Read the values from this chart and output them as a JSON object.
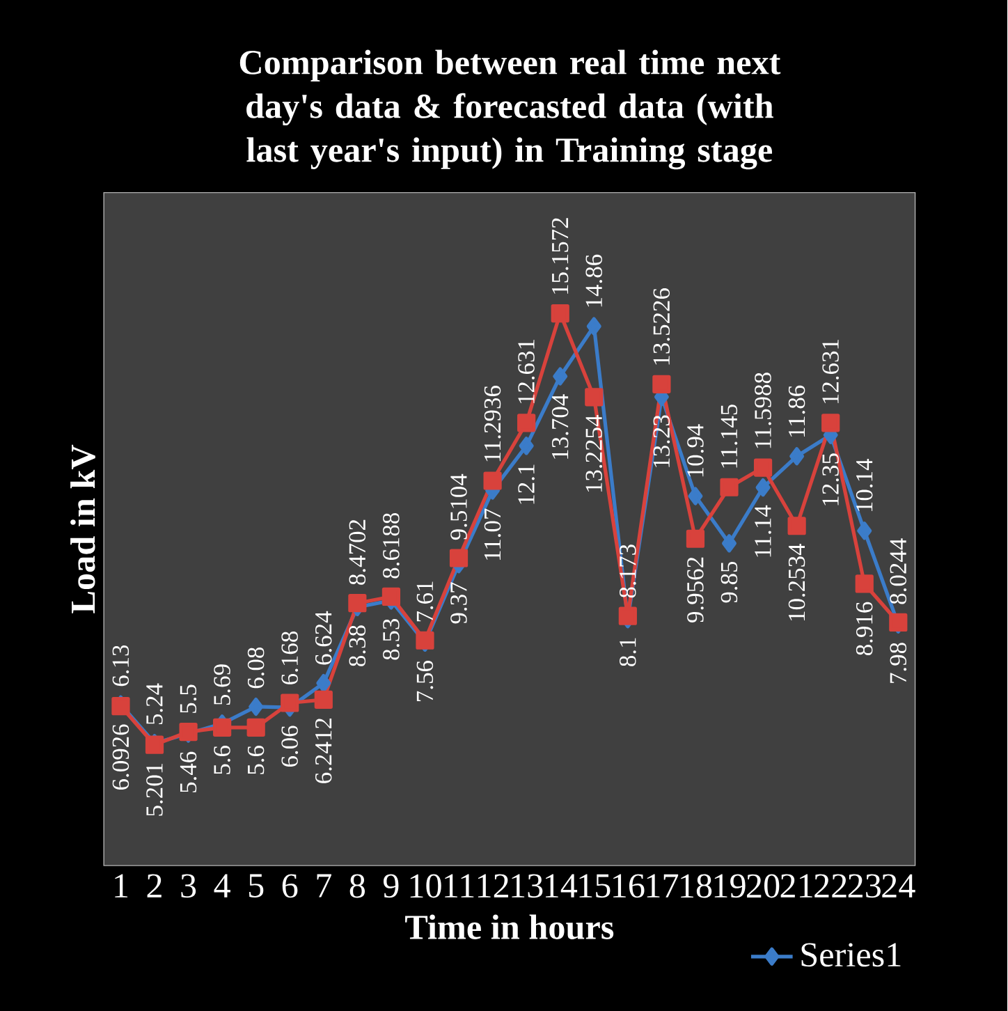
{
  "chart_data": {
    "type": "line",
    "title": "Comparison between real time next day's data & forecasted data (with last year's input) in Training stage",
    "xlabel": "Time in hours",
    "ylabel": "Load in kV",
    "categories": [
      "1",
      "2",
      "3",
      "4",
      "5",
      "6",
      "7",
      "8",
      "9",
      "10",
      "11",
      "12",
      "13",
      "14",
      "15",
      "16",
      "17",
      "18",
      "19",
      "20",
      "21",
      "22",
      "23",
      "24"
    ],
    "series": [
      {
        "name": "Series1",
        "color": "#3b7cc9",
        "marker": "diamond",
        "values": [
          6.13,
          5.24,
          5.46,
          5.69,
          6.08,
          6.06,
          6.624,
          8.38,
          8.53,
          7.56,
          9.37,
          11.07,
          12.1,
          13.704,
          14.86,
          8.1,
          13.23,
          10.94,
          9.85,
          11.14,
          11.86,
          12.35,
          10.14,
          7.98
        ]
      },
      {
        "color": "#d8423c",
        "marker": "square",
        "values": [
          6.0926,
          5.201,
          5.5,
          5.6,
          5.6,
          6.168,
          6.2412,
          8.4702,
          8.6188,
          7.61,
          9.5104,
          11.2936,
          12.631,
          15.1572,
          13.2254,
          8.173,
          13.5226,
          9.9562,
          11.145,
          11.5988,
          10.2534,
          12.631,
          8.916,
          8.0244
        ]
      }
    ],
    "data_labels": true,
    "legend": "bottom right"
  }
}
